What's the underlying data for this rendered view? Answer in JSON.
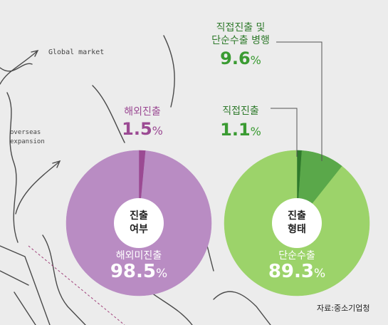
{
  "background": {
    "sketch_labels": [
      "Global market",
      "overseas",
      "expansion"
    ]
  },
  "source": "자료:중소기업청",
  "colors": {
    "purple_main": "#b98cc3",
    "purple_accent": "#9b4a93",
    "green_main": "#9cd36a",
    "green_accent": "#5aa84a",
    "green_dark": "#2f7a2c",
    "green_text": "#3a9b32",
    "white": "#ffffff"
  },
  "chart_data": [
    {
      "type": "pie",
      "center_label": [
        "진출",
        "여부"
      ],
      "slices": [
        {
          "label": "해외미진출",
          "value": 98.5,
          "unit": "%",
          "color": "#b98cc3"
        },
        {
          "label": "해외진출",
          "value": 1.5,
          "unit": "%",
          "color": "#9b4a93"
        }
      ]
    },
    {
      "type": "pie",
      "center_label": [
        "진출",
        "형태"
      ],
      "slices": [
        {
          "label": "단순수출",
          "value": 89.3,
          "unit": "%",
          "color": "#9cd36a"
        },
        {
          "label": "직접진출 및 단순수출 병행",
          "label_lines": [
            "직접진출 및",
            "단순수출 병행"
          ],
          "value": 9.6,
          "unit": "%",
          "color": "#5aa84a"
        },
        {
          "label": "직접진출",
          "value": 1.1,
          "unit": "%",
          "color": "#2f7a2c"
        }
      ]
    }
  ]
}
